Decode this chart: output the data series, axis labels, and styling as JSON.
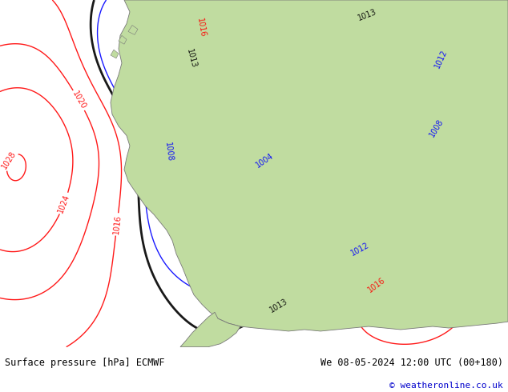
{
  "title_left": "Surface pressure [hPa] ECMWF",
  "title_right": "We 08-05-2024 12:00 UTC (00+180)",
  "copyright": "© weatheronline.co.uk",
  "bg_color": "#d8dde8",
  "land_color": "#c0dca0",
  "bottom_bar_color": "#ffffff",
  "figsize": [
    6.34,
    4.9
  ],
  "dpi": 100
}
